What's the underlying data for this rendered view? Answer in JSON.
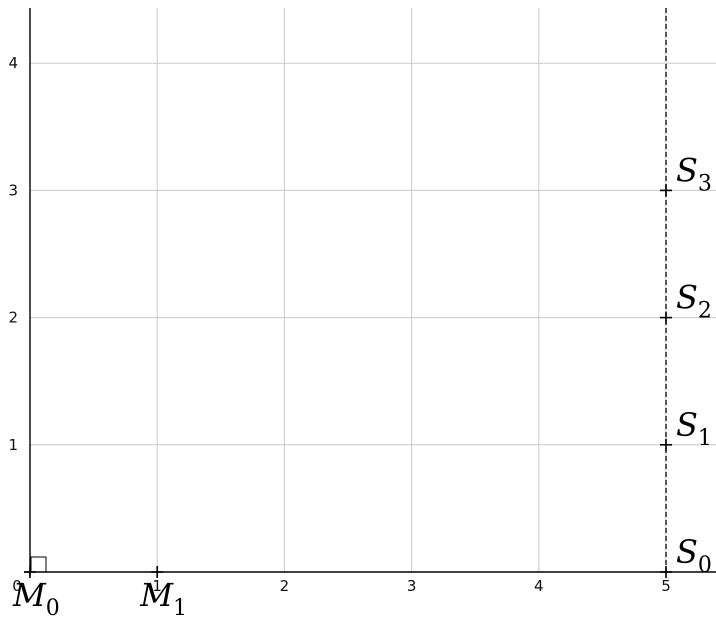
{
  "axes": {
    "x_range": [
      0,
      5.4
    ],
    "y_range": [
      0,
      4.4
    ],
    "x_ticks": [
      {
        "value": 0,
        "label": "0"
      },
      {
        "value": 1,
        "label": "1"
      },
      {
        "value": 2,
        "label": "2"
      },
      {
        "value": 3,
        "label": "3"
      },
      {
        "value": 4,
        "label": "4"
      },
      {
        "value": 5,
        "label": "5"
      }
    ],
    "y_ticks": [
      {
        "value": 1,
        "label": "1"
      },
      {
        "value": 2,
        "label": "2"
      },
      {
        "value": 3,
        "label": "3"
      },
      {
        "value": 4,
        "label": "4"
      }
    ],
    "grid": true
  },
  "dashed_line": {
    "x": 5
  },
  "right_angle_at": {
    "x": 0,
    "y": 0
  },
  "points": [
    {
      "id": "M0",
      "base": "M",
      "sub": "0",
      "x": 0,
      "y": 0,
      "label_side": "below"
    },
    {
      "id": "M1",
      "base": "M",
      "sub": "1",
      "x": 1,
      "y": 0,
      "label_side": "below"
    },
    {
      "id": "S0",
      "base": "S",
      "sub": "0",
      "x": 5,
      "y": 0,
      "label_side": "right"
    },
    {
      "id": "S1",
      "base": "S",
      "sub": "1",
      "x": 5,
      "y": 1,
      "label_side": "right"
    },
    {
      "id": "S2",
      "base": "S",
      "sub": "2",
      "x": 5,
      "y": 2,
      "label_side": "right"
    },
    {
      "id": "S3",
      "base": "S",
      "sub": "3",
      "x": 5,
      "y": 3,
      "label_side": "right"
    }
  ]
}
